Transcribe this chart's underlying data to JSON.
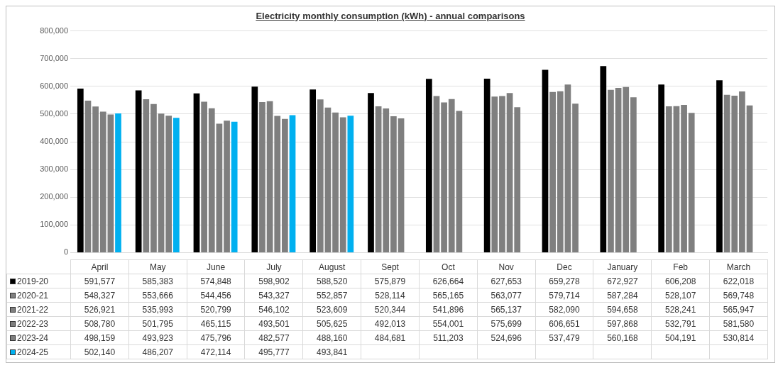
{
  "chart_data": {
    "type": "bar",
    "title": "Electricity monthly consumption (kWh) - annual comparisons",
    "categories": [
      "April",
      "May",
      "June",
      "July",
      "August",
      "Sept",
      "Oct",
      "Nov",
      "Dec",
      "January",
      "Feb",
      "March"
    ],
    "series": [
      {
        "name": "2019-20",
        "color": "#000000",
        "values": [
          591577,
          585383,
          574848,
          598902,
          588520,
          575879,
          626664,
          627653,
          659278,
          672927,
          606208,
          622018
        ],
        "value_labels": [
          "591,577",
          "585,383",
          "574,848",
          "598,902",
          "588,520",
          "575,879",
          "626,664",
          "627,653",
          "659,278",
          "672,927",
          "606,208",
          "622,018"
        ]
      },
      {
        "name": "2020-21",
        "color": "#7f7f7f",
        "values": [
          548327,
          553666,
          544456,
          543327,
          552857,
          528114,
          565165,
          563077,
          579714,
          587284,
          528107,
          569748
        ],
        "value_labels": [
          "548,327",
          "553,666",
          "544,456",
          "543,327",
          "552,857",
          "528,114",
          "565,165",
          "563,077",
          "579,714",
          "587,284",
          "528,107",
          "569,748"
        ]
      },
      {
        "name": "2021-22",
        "color": "#7f7f7f",
        "values": [
          526921,
          535993,
          520799,
          546102,
          523609,
          520344,
          541896,
          565137,
          582090,
          594658,
          528241,
          565947
        ],
        "value_labels": [
          "526,921",
          "535,993",
          "520,799",
          "546,102",
          "523,609",
          "520,344",
          "541,896",
          "565,137",
          "582,090",
          "594,658",
          "528,241",
          "565,947"
        ]
      },
      {
        "name": "2022-23",
        "color": "#7f7f7f",
        "values": [
          508780,
          501795,
          465115,
          493501,
          505625,
          492013,
          554001,
          575699,
          606651,
          597868,
          532791,
          581580
        ],
        "value_labels": [
          "508,780",
          "501,795",
          "465,115",
          "493,501",
          "505,625",
          "492,013",
          "554,001",
          "575,699",
          "606,651",
          "597,868",
          "532,791",
          "581,580"
        ]
      },
      {
        "name": "2023-24",
        "color": "#7f7f7f",
        "values": [
          498159,
          493923,
          475796,
          482577,
          488160,
          484681,
          511203,
          524696,
          537479,
          560168,
          504191,
          530814
        ],
        "value_labels": [
          "498,159",
          "493,923",
          "475,796",
          "482,577",
          "488,160",
          "484,681",
          "511,203",
          "524,696",
          "537,479",
          "560,168",
          "504,191",
          "530,814"
        ]
      },
      {
        "name": "2024-25",
        "color": "#00b0f0",
        "values": [
          502140,
          486207,
          472114,
          495777,
          493841,
          null,
          null,
          null,
          null,
          null,
          null,
          null
        ],
        "value_labels": [
          "502,140",
          "486,207",
          "472,114",
          "495,777",
          "493,841",
          null,
          null,
          null,
          null,
          null,
          null,
          null
        ]
      }
    ],
    "ylim": [
      0,
      800000
    ],
    "yticks": [
      {
        "value": 0,
        "label": "0"
      },
      {
        "value": 100000,
        "label": "100,000"
      },
      {
        "value": 200000,
        "label": "200,000"
      },
      {
        "value": 300000,
        "label": "300,000"
      },
      {
        "value": 400000,
        "label": "400,000"
      },
      {
        "value": 500000,
        "label": "500,000"
      },
      {
        "value": 600000,
        "label": "600,000"
      },
      {
        "value": 700000,
        "label": "700,000"
      },
      {
        "value": 800000,
        "label": "800,000"
      }
    ],
    "grid": "y",
    "legend": "bottom"
  }
}
